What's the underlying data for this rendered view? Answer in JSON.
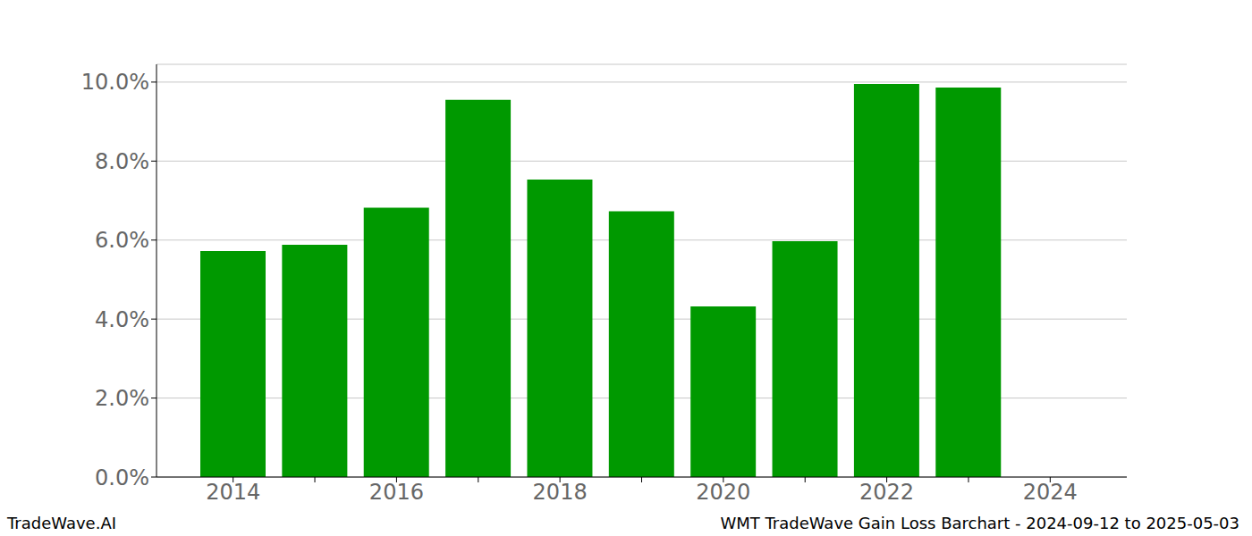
{
  "chart_data": {
    "type": "bar",
    "title": "WMT TradeWave Gain Loss Barchart - 2024-09-12 to 2025-05-03",
    "annotations": [
      "TradeWave.AI"
    ],
    "categories": [
      "2014",
      null,
      "2016",
      null,
      "2018",
      null,
      "2020",
      null,
      "2022",
      null,
      "2024"
    ],
    "values": [
      5.72,
      5.88,
      6.82,
      9.55,
      7.53,
      6.73,
      4.32,
      5.97,
      9.95,
      9.86,
      null
    ],
    "color": "#009900",
    "ylim": [
      0,
      10.45
    ],
    "yticks": [
      {
        "value": 0,
        "label": "0.0%"
      },
      {
        "value": 2,
        "label": "2.0%"
      },
      {
        "value": 4,
        "label": "4.0%"
      },
      {
        "value": 6,
        "label": "6.0%"
      },
      {
        "value": 8,
        "label": "8.0%"
      },
      {
        "value": 10,
        "label": "10.0%"
      }
    ],
    "grid": true
  }
}
